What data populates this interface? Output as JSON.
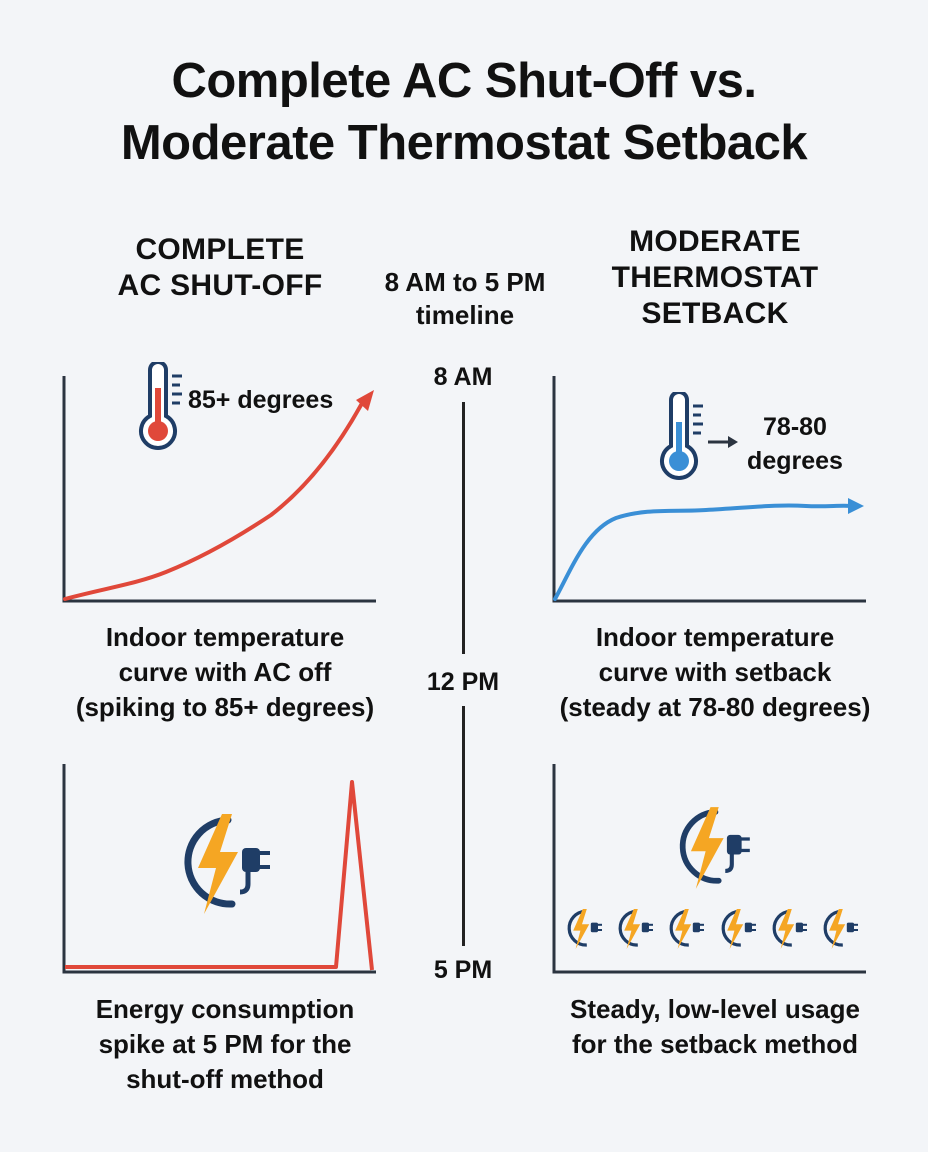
{
  "title": {
    "line1": "Complete AC Shut-Off vs.",
    "line2": "Moderate Thermostat Setback"
  },
  "left_column": {
    "heading_lines": [
      "COMPLETE",
      "AC SHUT-OFF"
    ],
    "temp_callout": "85+ degrees",
    "temp_caption_lines": [
      "Indoor temperature",
      "curve with AC off",
      "(spiking to 85+ degrees)"
    ],
    "energy_caption_lines": [
      "Energy consumption",
      "spike at 5 PM for the",
      "shut-off method"
    ]
  },
  "timeline": {
    "heading_lines": [
      "8 AM to 5 PM",
      "timeline"
    ],
    "ticks": [
      "8 AM",
      "12 PM",
      "5 PM"
    ]
  },
  "right_column": {
    "heading_lines": [
      "MODERATE",
      "THERMOSTAT",
      "SETBACK"
    ],
    "temp_callout_lines": [
      "78-80",
      "degrees"
    ],
    "temp_caption_lines": [
      "Indoor temperature",
      "curve with setback",
      "(steady at 78-80 degrees)"
    ],
    "energy_caption_lines": [
      "Steady, low-level usage",
      "for the setback method"
    ]
  },
  "icons": {
    "hot_thermometer": "thermometer-hot-icon",
    "cool_thermometer": "thermometer-cool-icon",
    "energy": "lightning-plug-icon"
  },
  "colors": {
    "shutoff_red": "#e0483a",
    "setback_blue": "#3a8fd6",
    "navy": "#1f3d66",
    "bolt_orange": "#f5a623",
    "axis": "#2b3440"
  }
}
